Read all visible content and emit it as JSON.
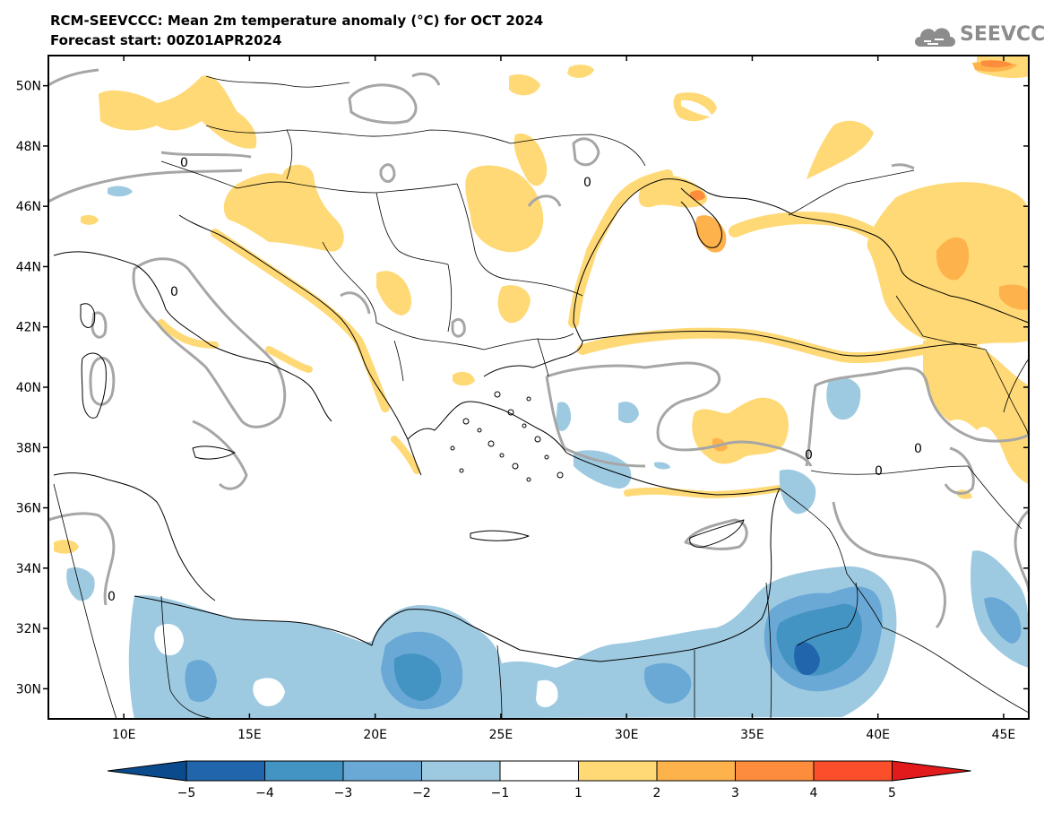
{
  "header": {
    "title": "RCM-SEEVCCC: Mean 2m temperature anomaly (°C) for OCT 2024",
    "subtitle": "Forecast start: 00Z01APR2024",
    "logo_text": "SEEVCCC",
    "logo_icon": "cloud-icon"
  },
  "map": {
    "lon_range": [
      7,
      46
    ],
    "lat_range": [
      29,
      51
    ],
    "lon_ticks": [
      "10E",
      "15E",
      "20E",
      "25E",
      "30E",
      "35E",
      "40E",
      "45E"
    ],
    "lat_ticks": [
      "50N",
      "48N",
      "46N",
      "44N",
      "42N",
      "40N",
      "38N",
      "36N",
      "34N",
      "32N",
      "30N"
    ],
    "contour_label": "0"
  },
  "colorbar": {
    "labels": [
      "−5",
      "−4",
      "−3",
      "−2",
      "−1",
      "1",
      "2",
      "3",
      "4",
      "5"
    ],
    "colors": {
      "below": "#0b4a8c",
      "b1": "#2166ac",
      "b2": "#4393c3",
      "b3": "#6aa9d6",
      "b4": "#9ecae1",
      "mid": "#ffffff",
      "w1": "#fed976",
      "w2": "#feb24c",
      "w3": "#fd8d3c",
      "w4": "#fc4e2a",
      "above": "#e31a1c"
    }
  }
}
